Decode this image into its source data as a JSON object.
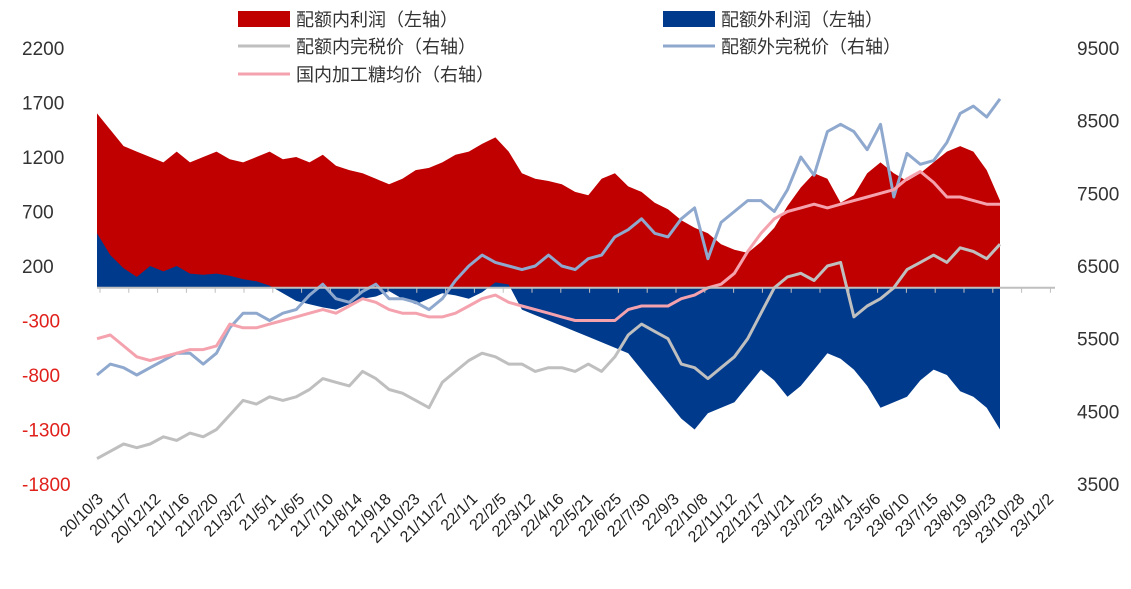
{
  "chart_data": {
    "type": "area",
    "legend": [
      {
        "key": "in_profit",
        "label": "配额内利润（左轴）",
        "color": "#C00000",
        "kind": "area"
      },
      {
        "key": "out_profit",
        "label": "配额外利润（左轴）",
        "color": "#003A8C",
        "kind": "area"
      },
      {
        "key": "in_price",
        "label": "配额内完税价（右轴）",
        "color": "#BFBFBF",
        "kind": "line"
      },
      {
        "key": "out_price",
        "label": "配额外完税价（右轴）",
        "color": "#8FA8CE",
        "kind": "line"
      },
      {
        "key": "dom_price",
        "label": "国内加工糖均价（右轴）",
        "color": "#F4A3AE",
        "kind": "line"
      }
    ],
    "left_axis": {
      "ticks": [
        2200,
        1700,
        1200,
        700,
        200,
        -300,
        -800,
        -1300,
        -1800
      ],
      "ylim": [
        -1800,
        2200
      ],
      "positive_color": "#333333",
      "negative_color": "#E0201B"
    },
    "right_axis": {
      "ticks": [
        9500,
        8500,
        7500,
        6500,
        5500,
        4500,
        3500
      ],
      "ylim": [
        3500,
        9500
      ],
      "color": "#333333"
    },
    "x_ticks": [
      "20/10/3",
      "20/11/7",
      "20/12/12",
      "21/1/16",
      "21/2/20",
      "21/3/27",
      "21/5/1",
      "21/6/5",
      "21/7/10",
      "21/8/14",
      "21/9/18",
      "21/10/23",
      "21/11/27",
      "22/1/1",
      "22/2/5",
      "22/3/12",
      "22/4/16",
      "22/5/21",
      "22/6/25",
      "22/7/30",
      "22/9/3",
      "22/10/8",
      "22/11/12",
      "22/12/17",
      "23/1/21",
      "23/2/25",
      "23/4/1",
      "23/5/6",
      "23/6/10",
      "23/7/15",
      "23/8/19",
      "23/9/23",
      "23/10/28",
      "23/12/2"
    ],
    "x_data_end_tick": 32,
    "series": [
      {
        "name": "配额内利润（左轴）",
        "values": [
          1600,
          1450,
          1300,
          1250,
          1200,
          1150,
          1250,
          1150,
          1200,
          1250,
          1180,
          1150,
          1200,
          1250,
          1180,
          1200,
          1150,
          1220,
          1120,
          1080,
          1050,
          1000,
          950,
          1000,
          1080,
          1100,
          1150,
          1220,
          1250,
          1320,
          1380,
          1250,
          1050,
          1000,
          980,
          950,
          880,
          850,
          1000,
          1050,
          930,
          880,
          780,
          720,
          620,
          550,
          500,
          400,
          350,
          320,
          420,
          550,
          750,
          920,
          1050,
          1000,
          780,
          850,
          1050,
          1150,
          1050,
          980,
          1050,
          1150,
          1250,
          1300,
          1250,
          1080,
          800
        ]
      },
      {
        "name": "配额外利润（左轴）",
        "values": [
          500,
          300,
          180,
          100,
          200,
          150,
          200,
          130,
          120,
          130,
          110,
          80,
          60,
          20,
          -50,
          -120,
          -150,
          -180,
          -200,
          -150,
          -100,
          -80,
          -30,
          -100,
          -150,
          -100,
          -50,
          -70,
          -100,
          -40,
          50,
          30,
          -200,
          -250,
          -300,
          -350,
          -400,
          -450,
          -500,
          -550,
          -600,
          -750,
          -900,
          -1050,
          -1200,
          -1300,
          -1150,
          -1100,
          -1050,
          -900,
          -750,
          -850,
          -1000,
          -900,
          -750,
          -600,
          -650,
          -750,
          -900,
          -1100,
          -1050,
          -1000,
          -850,
          -750,
          -800,
          -950,
          -1000,
          -1100,
          -1300
        ]
      },
      {
        "name": "配额外完税价（右轴）",
        "values": [
          5000,
          5150,
          5100,
          5000,
          5100,
          5200,
          5300,
          5300,
          5150,
          5300,
          5650,
          5850,
          5850,
          5750,
          5850,
          5900,
          6100,
          6250,
          6050,
          6000,
          6150,
          6250,
          6050,
          6050,
          6000,
          5900,
          6050,
          6300,
          6500,
          6650,
          6550,
          6500,
          6450,
          6500,
          6650,
          6500,
          6450,
          6600,
          6650,
          6900,
          7000,
          7150,
          6950,
          6900,
          7150,
          7300,
          6600,
          7100,
          7250,
          7400,
          7400,
          7250,
          7550,
          8000,
          7750,
          8350,
          8450,
          8350,
          8100,
          8450,
          7450,
          8050,
          7900,
          7950,
          8200,
          8600,
          8700,
          8550,
          8800
        ]
      },
      {
        "name": "配额内完税价（右轴）",
        "values": [
          3850,
          3950,
          4050,
          4000,
          4050,
          4150,
          4100,
          4200,
          4150,
          4250,
          4450,
          4650,
          4600,
          4700,
          4650,
          4700,
          4800,
          4950,
          4900,
          4850,
          5050,
          4950,
          4800,
          4750,
          4650,
          4550,
          4900,
          5050,
          5200,
          5300,
          5250,
          5150,
          5150,
          5050,
          5100,
          5100,
          5050,
          5150,
          5050,
          5250,
          5550,
          5700,
          5600,
          5500,
          5150,
          5100,
          4950,
          5100,
          5250,
          5500,
          5850,
          6200,
          6350,
          6400,
          6300,
          6500,
          6550,
          5800,
          5950,
          6050,
          6200,
          6450,
          6550,
          6650,
          6550,
          6750,
          6700,
          6600,
          6800
        ]
      },
      {
        "name": "国内加工糖均价（右轴）",
        "values": [
          5500,
          5550,
          5400,
          5250,
          5200,
          5250,
          5300,
          5350,
          5350,
          5400,
          5700,
          5650,
          5650,
          5700,
          5750,
          5800,
          5850,
          5900,
          5850,
          5950,
          6050,
          6000,
          5900,
          5850,
          5850,
          5800,
          5800,
          5850,
          5950,
          6050,
          6100,
          6000,
          5950,
          5900,
          5850,
          5800,
          5750,
          5750,
          5750,
          5750,
          5900,
          5950,
          5950,
          5950,
          6050,
          6100,
          6200,
          6250,
          6400,
          6700,
          6950,
          7150,
          7250,
          7300,
          7350,
          7300,
          7350,
          7400,
          7450,
          7500,
          7550,
          7700,
          7800,
          7650,
          7450,
          7450,
          7400,
          7350,
          7350
        ]
      }
    ]
  }
}
